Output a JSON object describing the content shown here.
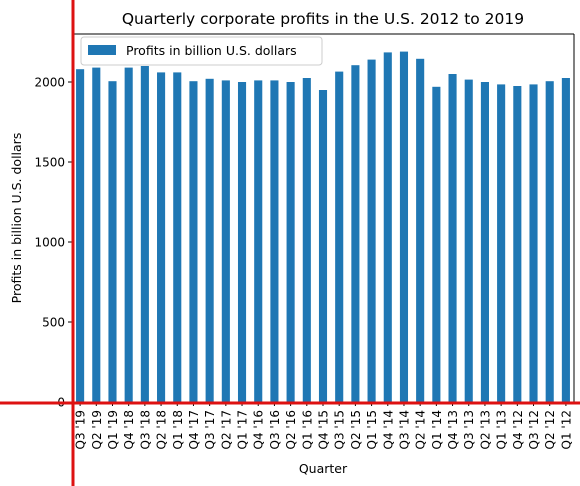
{
  "chart_data": {
    "type": "bar",
    "title": "Quarterly corporate profits in the U.S. 2012 to 2019",
    "xlabel": "Quarter",
    "ylabel": "Profits in billion U.S. dollars",
    "ylim": [
      0,
      2300
    ],
    "yticks": [
      0,
      500,
      1000,
      1500,
      2000
    ],
    "grid": false,
    "legend_position": "top-left",
    "bar_color": "#1f77b4",
    "axis_overlay_color": "#dd1111",
    "series": [
      {
        "name": "Profits in billion U.S. dollars",
        "values": [
          2080,
          2090,
          2005,
          2090,
          2100,
          2060,
          2060,
          2005,
          2020,
          2010,
          2000,
          2010,
          2010,
          2000,
          2025,
          1950,
          2065,
          2105,
          2140,
          2185,
          2190,
          2145,
          1970,
          2050,
          2015,
          2000,
          1985,
          1975,
          1985,
          2005,
          2025
        ]
      }
    ],
    "categories": [
      "Q3 '19",
      "Q2 '19",
      "Q1 '19",
      "Q4 '18",
      "Q3 '18",
      "Q2 '18",
      "Q1 '18",
      "Q4 '17",
      "Q3 '17",
      "Q2 '17",
      "Q1 '17",
      "Q4 '16",
      "Q3 '16",
      "Q2 '16",
      "Q1 '16",
      "Q4 '15",
      "Q3 '15",
      "Q2 '15",
      "Q1 '15",
      "Q4 '14",
      "Q3 '14",
      "Q2 '14",
      "Q1 '14",
      "Q4 '13",
      "Q3 '13",
      "Q2 '13",
      "Q1 '13",
      "Q4 '12",
      "Q3 '12",
      "Q2 '12",
      "Q1 '12"
    ]
  }
}
